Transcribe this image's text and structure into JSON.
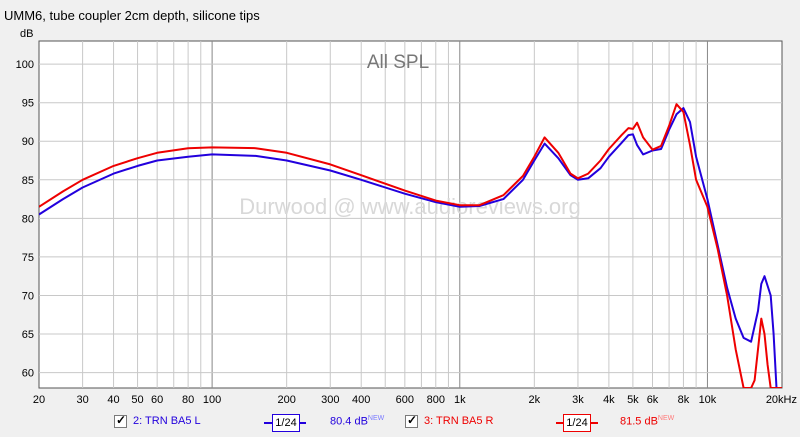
{
  "title": "UMM6, tube coupler 2cm depth, silicone tips",
  "chart_data": {
    "type": "line",
    "title": "All SPL",
    "watermark": "Durwood @ www.audioreviews.org",
    "ylabel": "dB",
    "x_scale": "log",
    "xlim": [
      20,
      20000
    ],
    "ylim": [
      58,
      103
    ],
    "x_ticks": [
      20,
      30,
      40,
      50,
      60,
      80,
      100,
      200,
      300,
      400,
      600,
      800,
      1000,
      2000,
      3000,
      4000,
      5000,
      6000,
      8000,
      10000,
      20000
    ],
    "x_tick_labels": [
      "20",
      "30",
      "40",
      "50",
      "60",
      "80",
      "100",
      "200",
      "300",
      "400",
      "600",
      "800",
      "1k",
      "2k",
      "3k",
      "4k",
      "5k",
      "6k",
      "8k",
      "10k",
      "20kHz"
    ],
    "y_ticks": [
      60,
      65,
      70,
      75,
      80,
      85,
      90,
      95,
      100
    ],
    "y_tick_labels": [
      "60",
      "65",
      "70",
      "75",
      "80",
      "85",
      "90",
      "95",
      "100"
    ],
    "grid": true,
    "legend_position": "bottom",
    "series": [
      {
        "name": "2: TRN BA5 L",
        "color": "#2200dd",
        "smoothing": "1/24",
        "level": "80.4 dB",
        "level_badge": "NEW",
        "x": [
          20,
          25,
          30,
          40,
          50,
          60,
          80,
          100,
          150,
          200,
          300,
          400,
          600,
          800,
          1000,
          1200,
          1500,
          1800,
          2000,
          2200,
          2500,
          2800,
          3000,
          3300,
          3700,
          4000,
          4500,
          4800,
          5000,
          5200,
          5500,
          6000,
          6500,
          7000,
          7500,
          8000,
          8500,
          9000,
          10000,
          11000,
          12000,
          13000,
          14000,
          15000,
          16000,
          16500,
          17000,
          18000,
          18500,
          19000,
          20000
        ],
        "y": [
          80.5,
          82.5,
          84,
          85.8,
          86.8,
          87.5,
          88,
          88.3,
          88.1,
          87.5,
          86.2,
          85,
          83.2,
          82.1,
          81.5,
          81.6,
          82.5,
          85,
          87.5,
          89.7,
          87.8,
          85.6,
          85,
          85.2,
          86.5,
          88,
          89.8,
          90.8,
          90.9,
          89.5,
          88.3,
          88.8,
          89,
          91.5,
          93.5,
          94.3,
          92.5,
          88,
          82.5,
          76.5,
          71,
          67,
          64.5,
          64,
          68,
          71.5,
          72.5,
          70,
          65,
          58,
          58
        ]
      },
      {
        "name": "3: TRN BA5 R",
        "color": "#ee0000",
        "smoothing": "1/24",
        "level": "81.5 dB",
        "level_badge": "NEW",
        "x": [
          20,
          25,
          30,
          40,
          50,
          60,
          80,
          100,
          150,
          200,
          300,
          400,
          600,
          800,
          1000,
          1200,
          1500,
          1800,
          2000,
          2200,
          2500,
          2800,
          3000,
          3300,
          3700,
          4000,
          4500,
          4800,
          5000,
          5200,
          5500,
          6000,
          6500,
          7000,
          7500,
          8000,
          8500,
          9000,
          10000,
          11000,
          12000,
          13000,
          14000,
          15000,
          15500,
          16000,
          16500,
          17000,
          17500,
          18000,
          19000,
          20000
        ],
        "y": [
          81.5,
          83.5,
          85,
          86.8,
          87.8,
          88.5,
          89.1,
          89.2,
          89.1,
          88.5,
          87,
          85.6,
          83.6,
          82.3,
          81.7,
          81.7,
          83,
          85.5,
          88,
          90.5,
          88.5,
          85.8,
          85.2,
          85.8,
          87.5,
          89,
          90.8,
          91.7,
          91.6,
          92.4,
          90.5,
          88.9,
          89.4,
          92,
          94.8,
          93.8,
          89.5,
          85,
          81.5,
          76,
          70,
          63,
          58,
          58,
          59,
          63,
          67,
          65,
          61,
          58,
          58,
          58
        ]
      }
    ]
  }
}
